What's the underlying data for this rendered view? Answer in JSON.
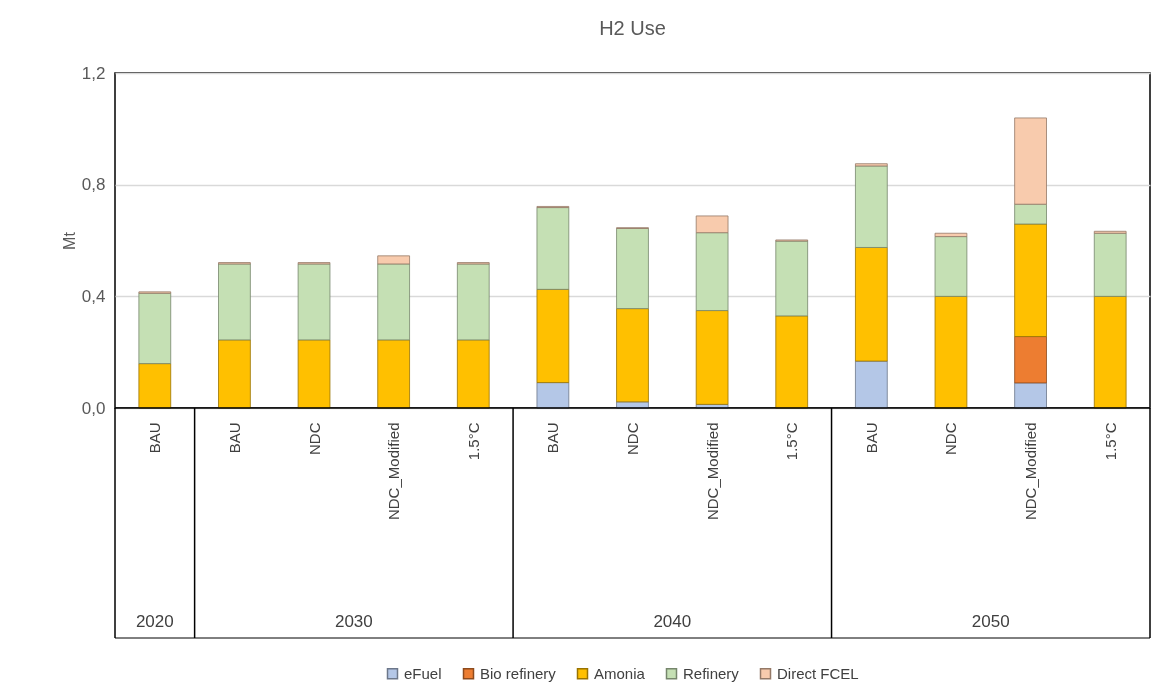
{
  "chart_data": {
    "type": "bar",
    "title": "H2 Use",
    "ylabel": "Mt",
    "stacked": true,
    "categories": [
      "BAU",
      "BAU",
      "NDC",
      "NDC_Modified",
      "1.5°C",
      "BAU",
      "NDC",
      "NDC_Modified",
      "1.5°C",
      "BAU",
      "NDC",
      "NDC_Modified",
      "1.5°C"
    ],
    "series": [
      {
        "name": "eFuel",
        "color": "#b4c7e7",
        "values": [
          0,
          0,
          0,
          0,
          0,
          0.091,
          0.022,
          0.013,
          0,
          0.168,
          0,
          0.09,
          0
        ]
      },
      {
        "name": "Bio refinery",
        "color": "#ed7d31",
        "values": [
          0,
          0,
          0,
          0,
          0,
          0,
          0,
          0,
          0,
          0,
          0,
          0.166,
          0
        ]
      },
      {
        "name": "Amonia",
        "color": "#ffc000",
        "values": [
          0.159,
          0.244,
          0.244,
          0.244,
          0.244,
          0.334,
          0.334,
          0.336,
          0.33,
          0.407,
          0.4,
          0.403,
          0.4
        ]
      },
      {
        "name": "Refinery",
        "color": "#c5e0b4",
        "values": [
          0.252,
          0.272,
          0.272,
          0.272,
          0.272,
          0.293,
          0.287,
          0.279,
          0.268,
          0.292,
          0.214,
          0.071,
          0.226
        ]
      },
      {
        "name": "Direct FCEL",
        "color": "#f8cbad",
        "values": [
          0.005,
          0.005,
          0.005,
          0.029,
          0.005,
          0.004,
          0.003,
          0.06,
          0.004,
          0.008,
          0.012,
          0.309,
          0.007
        ]
      }
    ],
    "ylim": [
      0,
      1.2
    ],
    "yticks": [
      {
        "value": 0,
        "label": "0,0"
      },
      {
        "value": 0.4,
        "label": "0,4"
      },
      {
        "value": 0.8,
        "label": "0,8"
      },
      {
        "value": 1.2,
        "label": "1,2"
      }
    ],
    "annotations": [
      "2020",
      "2030",
      "2040",
      "2050"
    ],
    "grid": "y",
    "legend": "bottom"
  }
}
